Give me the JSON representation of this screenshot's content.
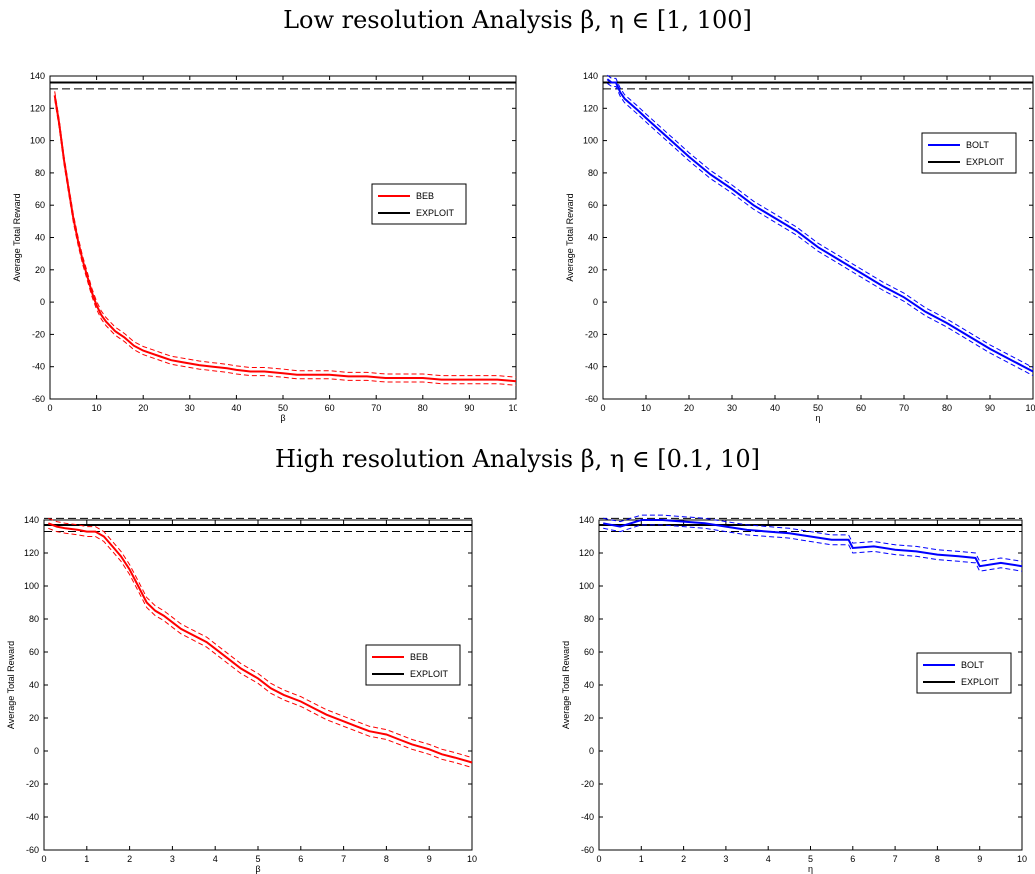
{
  "section_titles": {
    "top": "Low resolution Analysis β, η ∈ [1, 100]",
    "bottom": "High resolution Analysis β, η ∈ [0.1, 10]"
  },
  "chart_data": [
    {
      "type": "line",
      "xlabel": "β",
      "ylabel": "Average Total Reward",
      "xlim": [
        0,
        100
      ],
      "ylim": [
        -60,
        140
      ],
      "xticks": [
        0,
        10,
        20,
        30,
        40,
        50,
        60,
        70,
        80,
        90,
        100
      ],
      "yticks": [
        -60,
        -40,
        -20,
        0,
        20,
        40,
        60,
        80,
        100,
        120,
        140
      ],
      "legend": "right",
      "color": "#ff0000",
      "band": 2.5,
      "series": [
        {
          "name": "BEB",
          "color": "#ff0000",
          "style": "solid-with-dashed-band",
          "x": [
            1,
            2,
            3,
            4,
            5,
            6,
            7,
            8,
            9,
            10,
            11,
            12,
            14,
            16,
            18,
            20,
            22,
            24,
            26,
            28,
            30,
            32,
            35,
            38,
            40,
            43,
            46,
            50,
            53,
            56,
            60,
            64,
            68,
            72,
            76,
            80,
            84,
            88,
            92,
            96,
            100
          ],
          "y": [
            128,
            110,
            88,
            70,
            52,
            38,
            26,
            16,
            6,
            -2,
            -8,
            -12,
            -18,
            -22,
            -27,
            -30,
            -32,
            -34,
            -36,
            -37,
            -38,
            -39,
            -40,
            -41,
            -42,
            -43,
            -43,
            -44,
            -45,
            -45,
            -45,
            -46,
            -46,
            -47,
            -47,
            -47,
            -48,
            -48,
            -48,
            -48,
            -49
          ]
        }
      ],
      "reference": {
        "name": "EXPLOIT",
        "value": 136,
        "band": [
          132,
          140
        ],
        "color": "#000000"
      }
    },
    {
      "type": "line",
      "xlabel": "η",
      "ylabel": "Average Total Reward",
      "xlim": [
        0,
        100
      ],
      "ylim": [
        -60,
        140
      ],
      "xticks": [
        0,
        10,
        20,
        30,
        40,
        50,
        60,
        70,
        80,
        90,
        100
      ],
      "yticks": [
        -60,
        -40,
        -20,
        0,
        20,
        40,
        60,
        80,
        100,
        120,
        140
      ],
      "legend": "upper-right",
      "color": "#0000ff",
      "band": 2.5,
      "series": [
        {
          "name": "BOLT",
          "color": "#0000ff",
          "style": "solid-with-dashed-band",
          "x": [
            1,
            2,
            3,
            4,
            5,
            8,
            10,
            15,
            20,
            25,
            30,
            35,
            40,
            45,
            50,
            55,
            60,
            65,
            70,
            75,
            80,
            85,
            90,
            95,
            100
          ],
          "y": [
            138,
            136,
            136,
            130,
            126,
            119,
            114,
            102,
            90,
            79,
            70,
            60,
            52,
            44,
            34,
            26,
            18,
            10,
            3,
            -6,
            -13,
            -21,
            -29,
            -36,
            -43
          ]
        }
      ],
      "reference": {
        "name": "EXPLOIT",
        "value": 136,
        "band": [
          132,
          140
        ],
        "color": "#000000"
      }
    },
    {
      "type": "line",
      "xlabel": "β",
      "ylabel": "Average Total Reward",
      "xlim": [
        0,
        10
      ],
      "ylim": [
        -60,
        140
      ],
      "xticks": [
        0,
        1,
        2,
        3,
        4,
        5,
        6,
        7,
        8,
        9,
        10
      ],
      "yticks": [
        -60,
        -40,
        -20,
        0,
        20,
        40,
        60,
        80,
        100,
        120,
        140
      ],
      "legend": "right",
      "color": "#ff0000",
      "band": 3,
      "series": [
        {
          "name": "BEB",
          "color": "#ff0000",
          "style": "solid-with-dashed-band",
          "x": [
            0.1,
            0.3,
            0.5,
            0.8,
            1.0,
            1.2,
            1.4,
            1.6,
            1.8,
            2.0,
            2.2,
            2.4,
            2.6,
            2.8,
            3.0,
            3.2,
            3.5,
            3.8,
            4.0,
            4.3,
            4.6,
            5.0,
            5.3,
            5.6,
            6.0,
            6.3,
            6.6,
            7.0,
            7.3,
            7.6,
            8.0,
            8.3,
            8.6,
            9.0,
            9.3,
            9.6,
            10.0
          ],
          "y": [
            138,
            136,
            135,
            134,
            133,
            133,
            130,
            124,
            118,
            110,
            100,
            90,
            85,
            82,
            78,
            74,
            70,
            66,
            62,
            56,
            50,
            44,
            38,
            34,
            30,
            26,
            22,
            18,
            15,
            12,
            10,
            7,
            4,
            1,
            -2,
            -4,
            -7
          ]
        }
      ],
      "reference": {
        "name": "EXPLOIT",
        "value": 137,
        "band": [
          133,
          141
        ],
        "color": "#000000"
      }
    },
    {
      "type": "line",
      "xlabel": "η",
      "ylabel": "Average Total Reward",
      "xlim": [
        0,
        10
      ],
      "ylim": [
        -60,
        140
      ],
      "xticks": [
        0,
        1,
        2,
        3,
        4,
        5,
        6,
        7,
        8,
        9,
        10
      ],
      "yticks": [
        -60,
        -40,
        -20,
        0,
        20,
        40,
        60,
        80,
        100,
        120,
        140
      ],
      "legend": "right",
      "color": "#0000ff",
      "band": 3,
      "series": [
        {
          "name": "BOLT",
          "color": "#0000ff",
          "style": "solid-with-dashed-band",
          "x": [
            0.1,
            0.5,
            1.0,
            1.5,
            2.0,
            2.5,
            3.0,
            3.5,
            4.0,
            4.5,
            5.0,
            5.5,
            5.9,
            6.0,
            6.5,
            7.0,
            7.5,
            8.0,
            8.5,
            8.9,
            9.0,
            9.5,
            10.0
          ],
          "y": [
            138,
            136,
            140,
            140,
            139,
            138,
            136,
            134,
            133,
            132,
            130,
            128,
            128,
            123,
            124,
            122,
            121,
            119,
            118,
            117,
            112,
            114,
            112
          ]
        }
      ],
      "reference": {
        "name": "EXPLOIT",
        "value": 137,
        "band": [
          133,
          141
        ],
        "color": "#000000"
      }
    }
  ]
}
